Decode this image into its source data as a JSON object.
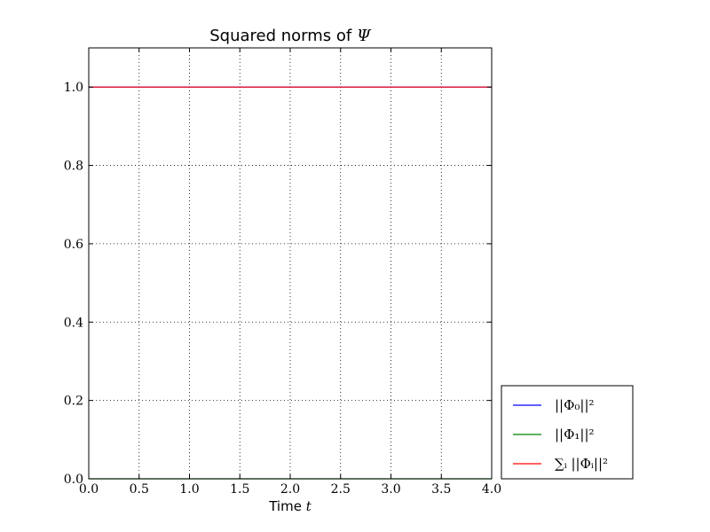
{
  "chart_data": {
    "type": "line",
    "title": {
      "text": "Squared norms of ",
      "math": "Ψ"
    },
    "xlabel": {
      "text": "Time ",
      "math": "t"
    },
    "ylabel": "",
    "xlim": [
      0.0,
      4.0
    ],
    "ylim": [
      0.0,
      1.1
    ],
    "xticks": [
      0.0,
      0.5,
      1.0,
      1.5,
      2.0,
      2.5,
      3.0,
      3.5,
      4.0
    ],
    "yticks": [
      0.0,
      0.2,
      0.4,
      0.6,
      0.8,
      1.0
    ],
    "xtick_labels": [
      "0.0",
      "0.5",
      "1.0",
      "1.5",
      "2.0",
      "2.5",
      "3.0",
      "3.5",
      "4.0"
    ],
    "ytick_labels": [
      "0.0",
      "0.2",
      "0.4",
      "0.6",
      "0.8",
      "1.0"
    ],
    "grid": true,
    "legend_position": "outside-lower-right",
    "series": [
      {
        "name": "||Φ₀||²",
        "color": "#0000ff",
        "x": [
          0.0,
          4.0
        ],
        "y": [
          1.0,
          1.0
        ]
      },
      {
        "name": "||Φ₁||²",
        "color": "#008000",
        "x": [
          0.0,
          4.0
        ],
        "y": [
          0.0,
          0.0
        ]
      },
      {
        "name": "∑ᵢ ||Φᵢ||²",
        "color": "#ff0000",
        "x": [
          0.0,
          4.0
        ],
        "y": [
          1.0,
          1.0
        ]
      }
    ]
  }
}
